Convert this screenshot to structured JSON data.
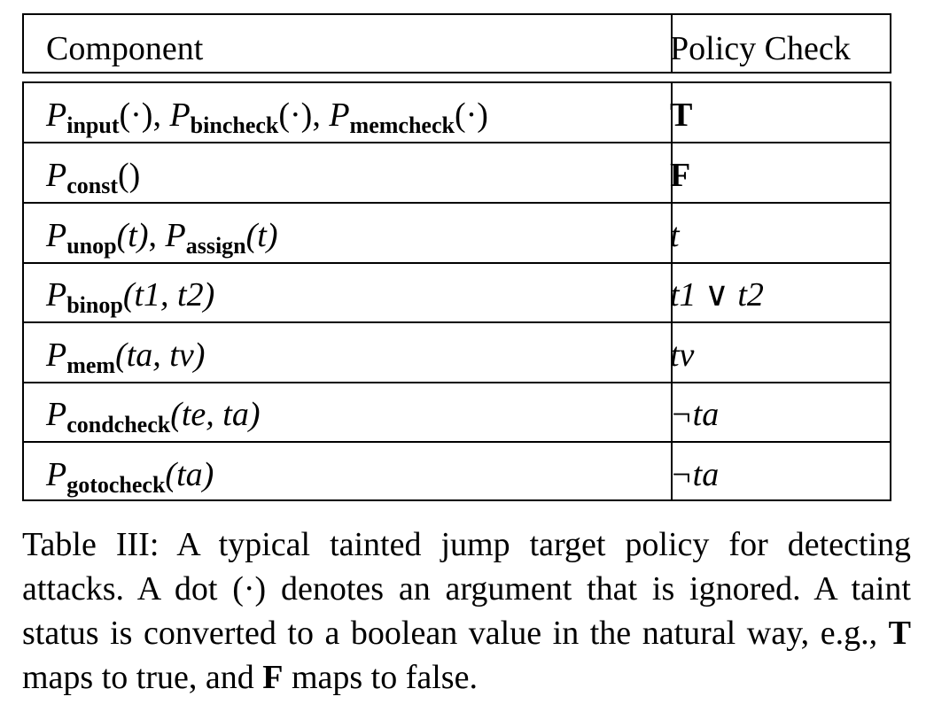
{
  "table": {
    "headers": {
      "component": "Component",
      "policy": "Policy Check"
    },
    "rows": [
      {
        "component": [
          {
            "p": "P",
            "s": "input",
            "a": "(·)"
          },
          {
            "sep": ", "
          },
          {
            "p": "P",
            "s": "bincheck",
            "a": "(·)"
          },
          {
            "sep": ", "
          },
          {
            "p": "P",
            "s": "memcheck",
            "a": "(·)"
          }
        ],
        "check": "T"
      },
      {
        "component": [
          {
            "p": "P",
            "s": "const",
            "a": "()"
          }
        ],
        "check": "F"
      },
      {
        "component": [
          {
            "p": "P",
            "s": "unop",
            "a": "(t)"
          },
          {
            "sep": ", "
          },
          {
            "p": "P",
            "s": "assign",
            "a": "(t)"
          }
        ],
        "check": "t"
      },
      {
        "component": [
          {
            "p": "P",
            "s": "binop",
            "a": "(t1, t2)"
          }
        ],
        "check": "t1 ∨ t2"
      },
      {
        "component": [
          {
            "p": "P",
            "s": "mem",
            "a": "(ta, tv)"
          }
        ],
        "check": "tv"
      },
      {
        "component": [
          {
            "p": "P",
            "s": "condcheck",
            "a": "(te, ta)"
          }
        ],
        "check": "¬ta"
      },
      {
        "component": [
          {
            "p": "P",
            "s": "gotocheck",
            "a": "(ta)"
          }
        ],
        "check": "¬ta"
      }
    ]
  },
  "caption": {
    "label": "Table III:",
    "p1": " A typical tainted jump target policy for detecting attacks. A dot (·) denotes an argument that is ignored. A taint status is converted to a boolean value in the natural way, e.g., ",
    "t": "T",
    "p2": " maps to true, and ",
    "f": "F",
    "p3": " maps to false."
  }
}
